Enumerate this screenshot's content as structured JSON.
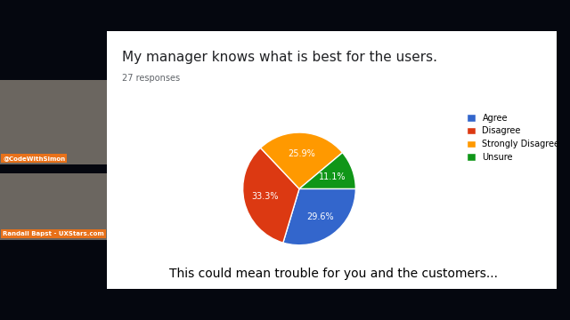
{
  "chart_data": {
    "type": "pie",
    "title": "My manager knows what is best for the users.",
    "subtitle": "27 responses",
    "categories": [
      "Agree",
      "Disagree",
      "Strongly Disagree",
      "Unsure"
    ],
    "values": [
      29.6,
      33.3,
      25.9,
      11.1
    ],
    "value_labels": [
      "29.6%",
      "33.3%",
      "25.9%",
      "11.1%"
    ],
    "colors": [
      "#3366cc",
      "#dc3912",
      "#ff9900",
      "#109618"
    ],
    "data_labels": true,
    "legend": "right",
    "annotations": [
      "This could mean trouble for you and the customers...",
      "@CodeWithSimon",
      "Randall Bapst - UXStars.com"
    ]
  }
}
